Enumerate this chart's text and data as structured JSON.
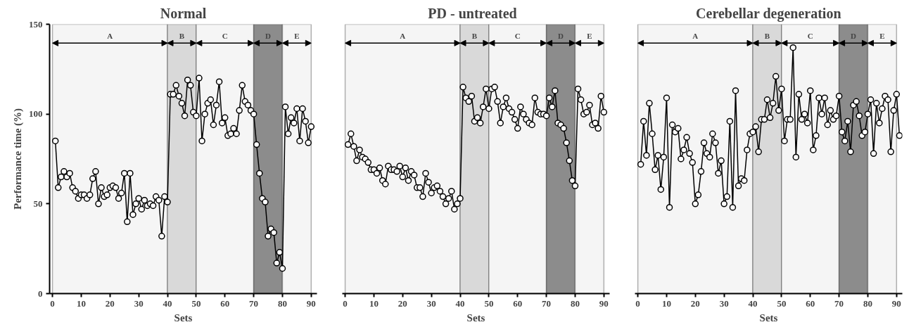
{
  "chart_data": [
    {
      "type": "line",
      "title": "Normal",
      "xlabel": "Sets",
      "ylabel": "Performance time (%)",
      "marker": "circle",
      "grid": false,
      "xlim": [
        -1,
        92
      ],
      "ylim": [
        0,
        150
      ],
      "xticks": [
        0,
        10,
        20,
        30,
        40,
        50,
        60,
        70,
        80,
        90
      ],
      "yticks": [
        0,
        50,
        100,
        150
      ],
      "x": [
        1,
        2,
        3,
        4,
        5,
        6,
        7,
        8,
        9,
        10,
        11,
        12,
        13,
        14,
        15,
        16,
        17,
        18,
        19,
        20,
        21,
        22,
        23,
        24,
        25,
        26,
        27,
        28,
        29,
        30,
        31,
        32,
        33,
        34,
        35,
        36,
        37,
        38,
        39,
        40,
        41,
        42,
        43,
        44,
        45,
        46,
        47,
        48,
        49,
        50,
        51,
        52,
        53,
        54,
        55,
        56,
        57,
        58,
        59,
        60,
        61,
        62,
        63,
        64,
        65,
        66,
        67,
        68,
        69,
        70,
        71,
        72,
        73,
        74,
        75,
        76,
        77,
        78,
        79,
        80,
        81,
        82,
        83,
        84,
        85,
        86,
        87,
        88,
        89,
        90
      ],
      "series": [
        {
          "color": "#000000",
          "values": [
            85,
            59,
            65,
            68,
            65,
            67,
            59,
            57,
            53,
            55,
            55,
            53,
            55,
            64,
            68,
            50,
            59,
            54,
            55,
            59,
            60,
            59,
            53,
            56,
            67,
            40,
            67,
            44,
            50,
            53,
            47,
            52,
            49,
            50,
            49,
            54,
            52,
            32,
            54,
            51,
            111,
            111,
            116,
            110,
            106,
            99,
            119,
            116,
            101,
            99,
            120,
            85,
            100,
            106,
            108,
            94,
            105,
            118,
            95,
            98,
            88,
            89,
            92,
            89,
            102,
            116,
            107,
            105,
            102,
            100,
            83,
            67,
            53,
            51,
            32,
            36,
            34,
            17,
            23,
            14,
            104,
            89,
            98,
            95,
            103,
            85,
            103,
            96,
            84,
            93
          ]
        }
      ],
      "bands": [
        {
          "axis": "x",
          "from": 0,
          "to": 40,
          "label": "A",
          "color": "#f5f5f5"
        },
        {
          "axis": "x",
          "from": 40,
          "to": 50,
          "label": "B",
          "color": "#d9d9d9"
        },
        {
          "axis": "x",
          "from": 50,
          "to": 70,
          "label": "C",
          "color": "#f5f5f5"
        },
        {
          "axis": "x",
          "from": 70,
          "to": 80,
          "label": "D",
          "color": "#8c8c8c"
        },
        {
          "axis": "x",
          "from": 80,
          "to": 90,
          "label": "E",
          "color": "#f5f5f5"
        }
      ]
    },
    {
      "type": "line",
      "title": "PD  -  untreated",
      "xlabel": "Sets",
      "marker": "circle",
      "grid": false,
      "tick_labels": "x",
      "xlim": [
        -1,
        92
      ],
      "ylim": [
        0,
        150
      ],
      "xticks": [
        0,
        10,
        20,
        30,
        40,
        50,
        60,
        70,
        80,
        90
      ],
      "yticks": [
        0,
        50,
        100,
        150
      ],
      "x": [
        1,
        2,
        3,
        4,
        5,
        6,
        7,
        8,
        9,
        10,
        11,
        12,
        13,
        14,
        15,
        16,
        17,
        18,
        19,
        20,
        21,
        22,
        23,
        24,
        25,
        26,
        27,
        28,
        29,
        30,
        31,
        32,
        33,
        34,
        35,
        36,
        37,
        38,
        39,
        40,
        41,
        42,
        43,
        44,
        45,
        46,
        47,
        48,
        49,
        50,
        51,
        52,
        53,
        54,
        55,
        56,
        57,
        58,
        59,
        60,
        61,
        62,
        63,
        64,
        65,
        66,
        67,
        68,
        69,
        70,
        71,
        72,
        73,
        74,
        75,
        76,
        77,
        78,
        79,
        80,
        81,
        82,
        83,
        84,
        85,
        86,
        87,
        88,
        89,
        90
      ],
      "series": [
        {
          "color": "#000000",
          "values": [
            83,
            89,
            82,
            74,
            80,
            76,
            75,
            73,
            69,
            69,
            67,
            70,
            63,
            61,
            71,
            69,
            69,
            68,
            71,
            65,
            70,
            63,
            68,
            66,
            59,
            59,
            54,
            67,
            62,
            56,
            59,
            60,
            57,
            54,
            50,
            53,
            57,
            47,
            50,
            53,
            115,
            109,
            107,
            110,
            96,
            98,
            95,
            104,
            114,
            103,
            114,
            115,
            107,
            95,
            104,
            109,
            103,
            101,
            97,
            92,
            104,
            100,
            97,
            95,
            94,
            109,
            101,
            100,
            100,
            99,
            109,
            104,
            113,
            95,
            94,
            92,
            84,
            74,
            63,
            60,
            114,
            108,
            100,
            101,
            105,
            94,
            95,
            92,
            110,
            101
          ]
        }
      ],
      "bands": [
        {
          "axis": "x",
          "from": 0,
          "to": 40,
          "label": "A",
          "color": "#f5f5f5"
        },
        {
          "axis": "x",
          "from": 40,
          "to": 50,
          "label": "B",
          "color": "#d9d9d9"
        },
        {
          "axis": "x",
          "from": 50,
          "to": 70,
          "label": "C",
          "color": "#f5f5f5"
        },
        {
          "axis": "x",
          "from": 70,
          "to": 80,
          "label": "D",
          "color": "#8c8c8c"
        },
        {
          "axis": "x",
          "from": 80,
          "to": 90,
          "label": "E",
          "color": "#f5f5f5"
        }
      ]
    },
    {
      "type": "line",
      "title": "Cerebellar degeneration",
      "xlabel": "Sets",
      "marker": "circle",
      "grid": false,
      "tick_labels": "x",
      "xlim": [
        -1,
        92
      ],
      "ylim": [
        0,
        150
      ],
      "xticks": [
        0,
        10,
        20,
        30,
        40,
        50,
        60,
        70,
        80,
        90
      ],
      "yticks": [
        0,
        50,
        100,
        150
      ],
      "x": [
        1,
        2,
        3,
        4,
        5,
        6,
        7,
        8,
        9,
        10,
        11,
        12,
        13,
        14,
        15,
        16,
        17,
        18,
        19,
        20,
        21,
        22,
        23,
        24,
        25,
        26,
        27,
        28,
        29,
        30,
        31,
        32,
        33,
        34,
        35,
        36,
        37,
        38,
        39,
        40,
        41,
        42,
        43,
        44,
        45,
        46,
        47,
        48,
        49,
        50,
        51,
        52,
        53,
        54,
        55,
        56,
        57,
        58,
        59,
        60,
        61,
        62,
        63,
        64,
        65,
        66,
        67,
        68,
        69,
        70,
        71,
        72,
        73,
        74,
        75,
        76,
        77,
        78,
        79,
        80,
        81,
        82,
        83,
        84,
        85,
        86,
        87,
        88,
        89,
        90,
        91
      ],
      "series": [
        {
          "color": "#000000",
          "values": [
            72,
            96,
            77,
            106,
            89,
            69,
            77,
            58,
            76,
            109,
            48,
            94,
            90,
            92,
            75,
            80,
            87,
            78,
            73,
            50,
            55,
            68,
            84,
            78,
            76,
            89,
            84,
            67,
            74,
            50,
            54,
            96,
            48,
            113,
            60,
            64,
            63,
            80,
            89,
            90,
            93,
            79,
            97,
            97,
            108,
            98,
            106,
            121,
            102,
            114,
            85,
            97,
            97,
            137,
            76,
            111,
            97,
            100,
            95,
            113,
            80,
            88,
            109,
            100,
            109,
            94,
            102,
            97,
            99,
            110,
            90,
            85,
            96,
            79,
            105,
            107,
            99,
            88,
            90,
            100,
            108,
            78,
            106,
            95,
            103,
            110,
            108,
            79,
            102,
            111,
            88
          ]
        }
      ],
      "bands": [
        {
          "axis": "x",
          "from": 0,
          "to": 40,
          "label": "A",
          "color": "#f5f5f5"
        },
        {
          "axis": "x",
          "from": 40,
          "to": 50,
          "label": "B",
          "color": "#d9d9d9"
        },
        {
          "axis": "x",
          "from": 50,
          "to": 70,
          "label": "C",
          "color": "#f5f5f5"
        },
        {
          "axis": "x",
          "from": 70,
          "to": 80,
          "label": "D",
          "color": "#8c8c8c"
        },
        {
          "axis": "x",
          "from": 80,
          "to": 90,
          "label": "E",
          "color": "#f5f5f5"
        }
      ]
    }
  ]
}
